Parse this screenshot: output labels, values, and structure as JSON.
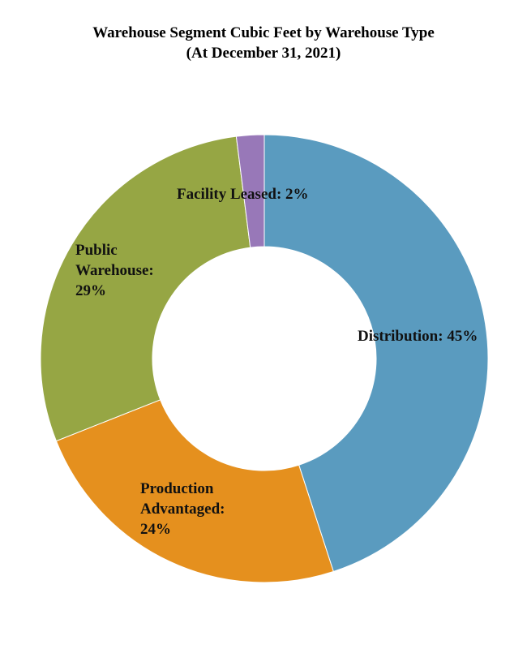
{
  "chart_data": {
    "type": "pie",
    "title": "Warehouse Segment Cubic Feet by Warehouse Type",
    "subtitle": "(At December 31, 2021)",
    "donut": true,
    "slices": [
      {
        "label_lines": [
          "Distribution: 45%"
        ],
        "value": 45,
        "color": "#5a9bbf"
      },
      {
        "label_lines": [
          "Production",
          "Advantaged:",
          "24%"
        ],
        "value": 24,
        "color": "#e5901e"
      },
      {
        "label_lines": [
          "Public",
          "Warehouse:",
          "29%"
        ],
        "value": 29,
        "color": "#96a644"
      },
      {
        "label_lines": [
          "Facility Leased: 2%"
        ],
        "value": 2,
        "color": "#9878b8"
      }
    ]
  }
}
